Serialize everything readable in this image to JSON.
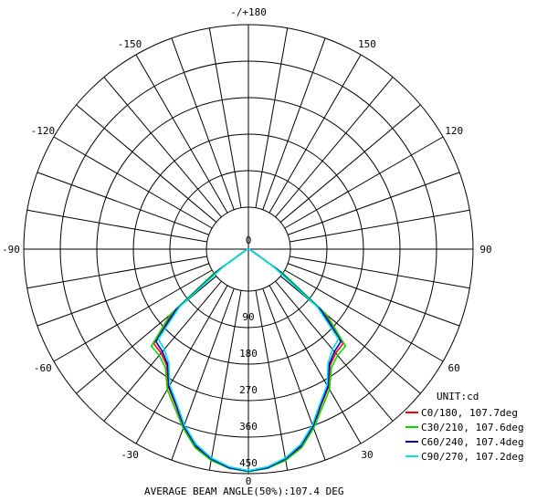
{
  "chart_data": {
    "type": "polar",
    "unit_label": "UNIT:cd",
    "radial_ticks": [
      "0",
      "90",
      "180",
      "270",
      "360",
      "450"
    ],
    "radial_max": 450,
    "angle_labels": [
      {
        "angle": 180,
        "text": "-/+180"
      },
      {
        "angle": 150,
        "text": "150"
      },
      {
        "angle": -150,
        "text": "-150"
      },
      {
        "angle": 120,
        "text": "120"
      },
      {
        "angle": -120,
        "text": "-120"
      },
      {
        "angle": 90,
        "text": "90"
      },
      {
        "angle": -90,
        "text": "-90"
      },
      {
        "angle": 60,
        "text": "60"
      },
      {
        "angle": -60,
        "text": "-60"
      },
      {
        "angle": 30,
        "text": "30"
      },
      {
        "angle": -30,
        "text": "-30"
      },
      {
        "angle": 0,
        "text": "0"
      }
    ],
    "grid": true,
    "legend_position": "bottom-right",
    "series": [
      {
        "name": "C0/180, 107.7deg",
        "color": "#ff0000",
        "angles": [
          -90,
          -80,
          -70,
          -60,
          -55,
          -50,
          -45,
          -40,
          -35,
          -30,
          -25,
          -20,
          -15,
          -10,
          -5,
          0,
          5,
          10,
          15,
          20,
          25,
          30,
          35,
          40,
          45,
          50,
          55,
          60,
          65,
          70,
          80,
          90
        ],
        "values": [
          0,
          2,
          5,
          12,
          80,
          200,
          268,
          272,
          285,
          320,
          345,
          380,
          410,
          428,
          440,
          445,
          440,
          428,
          410,
          380,
          345,
          320,
          285,
          272,
          268,
          200,
          80,
          12,
          6,
          4,
          2,
          0
        ]
      },
      {
        "name": "C30/210, 107.6deg",
        "color": "#00dd00",
        "angles": [
          -90,
          -80,
          -70,
          -60,
          -55,
          -50,
          -45,
          -40,
          -35,
          -30,
          -25,
          -20,
          -15,
          -10,
          -5,
          0,
          5,
          10,
          15,
          20,
          25,
          30,
          35,
          40,
          45,
          50,
          55,
          60,
          65,
          70,
          80,
          90
        ],
        "values": [
          0,
          2,
          5,
          14,
          85,
          205,
          275,
          278,
          290,
          325,
          350,
          382,
          412,
          430,
          441,
          446,
          441,
          430,
          412,
          382,
          350,
          325,
          290,
          278,
          275,
          205,
          85,
          14,
          6,
          4,
          2,
          0
        ]
      },
      {
        "name": "C60/240, 107.4deg",
        "color": "#0000cc",
        "angles": [
          -90,
          -80,
          -70,
          -60,
          -55,
          -50,
          -45,
          -40,
          -35,
          -30,
          -25,
          -20,
          -15,
          -10,
          -5,
          0,
          5,
          10,
          15,
          20,
          25,
          30,
          35,
          40,
          45,
          50,
          55,
          60,
          65,
          70,
          80,
          90
        ],
        "values": [
          0,
          2,
          5,
          10,
          70,
          190,
          262,
          268,
          282,
          318,
          343,
          378,
          408,
          427,
          440,
          445,
          440,
          427,
          408,
          378,
          343,
          318,
          282,
          268,
          262,
          190,
          70,
          10,
          6,
          4,
          2,
          0
        ]
      },
      {
        "name": "C90/270, 107.2deg",
        "color": "#00e5e5",
        "angles": [
          -90,
          -80,
          -70,
          -60,
          -55,
          -50,
          -45,
          -40,
          -35,
          -30,
          -25,
          -20,
          -15,
          -10,
          -5,
          0,
          5,
          10,
          15,
          20,
          25,
          30,
          35,
          40,
          45,
          50,
          55,
          60,
          65,
          70,
          80,
          90
        ],
        "values": [
          0,
          2,
          5,
          8,
          60,
          180,
          255,
          262,
          278,
          315,
          340,
          375,
          405,
          425,
          438,
          444,
          438,
          425,
          405,
          375,
          340,
          315,
          278,
          262,
          255,
          180,
          60,
          8,
          6,
          4,
          2,
          0
        ]
      }
    ],
    "footer": "AVERAGE BEAM ANGLE(50%):107.4 DEG"
  }
}
